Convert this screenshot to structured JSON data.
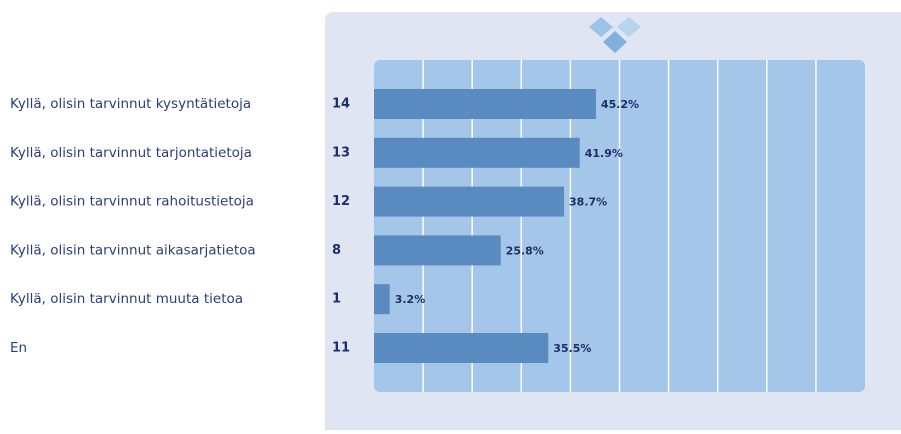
{
  "chart_data": {
    "type": "bar",
    "orientation": "horizontal",
    "categories": [
      "Kyllä, olisin tarvinnut kysyntätietoja",
      "Kyllä, olisin tarvinnut tarjontatietoja",
      "Kyllä, olisin tarvinnut rahoitustietoja",
      "Kyllä, olisin tarvinnut aikasarjatietoa",
      "Kyllä, olisin tarvinnut muuta tietoa",
      "En"
    ],
    "counts": [
      14,
      13,
      12,
      8,
      1,
      11
    ],
    "values": [
      45.2,
      41.9,
      38.7,
      25.8,
      3.2,
      35.5
    ],
    "value_labels": [
      "45.2%",
      "41.9%",
      "38.7%",
      "25.8%",
      "3.2%",
      "35.5%"
    ],
    "color": "#5a8bc0",
    "xlim": [
      0,
      100
    ],
    "grid": true
  }
}
